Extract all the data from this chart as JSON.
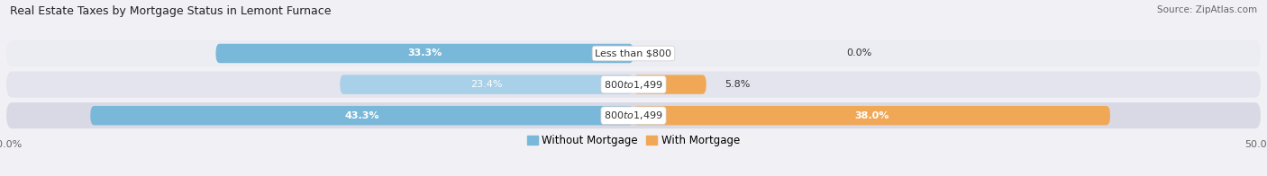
{
  "title": "Real Estate Taxes by Mortgage Status in Lemont Furnace",
  "source": "Source: ZipAtlas.com",
  "rows": [
    {
      "label": "Less than $800",
      "without_mortgage": 33.3,
      "with_mortgage": 0.0
    },
    {
      "label": "$800 to $1,499",
      "without_mortgage": 23.4,
      "with_mortgage": 5.8
    },
    {
      "label": "$800 to $1,499",
      "without_mortgage": 43.3,
      "with_mortgage": 38.0
    }
  ],
  "xlim": [
    -50.0,
    50.0
  ],
  "color_without": "#7ab8d9",
  "color_without_light": "#a8d0e8",
  "color_with": "#f0a857",
  "color_bg": "#f0f0f5",
  "color_row0": "#ececf3",
  "color_row1": "#e4e4ee",
  "color_row2": "#d9d9e6",
  "bar_height": 0.62,
  "legend_without": "Without Mortgage",
  "legend_with": "With Mortgage"
}
